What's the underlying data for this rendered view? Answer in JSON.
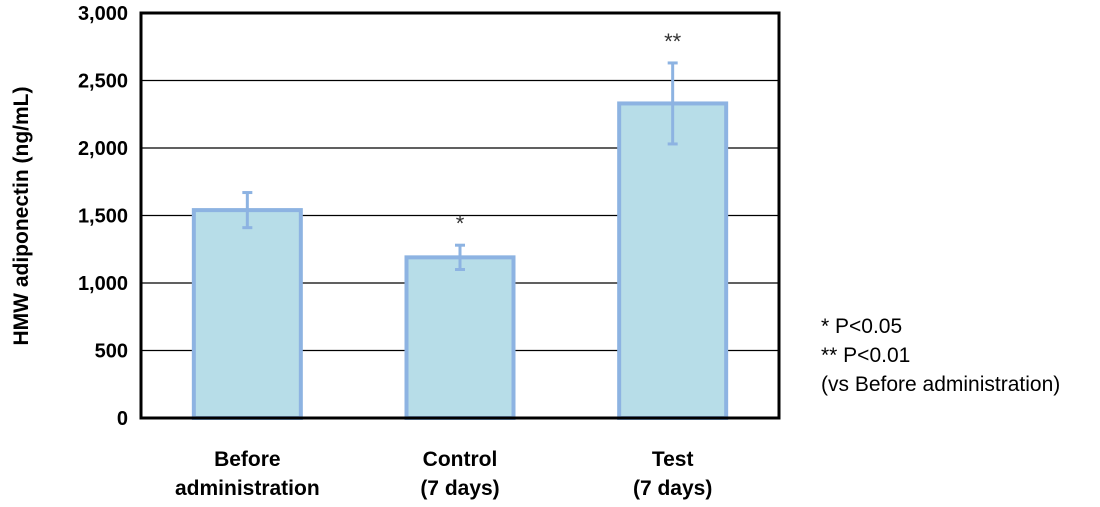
{
  "chart_data": {
    "type": "bar",
    "ylabel": "HMW adiponectin (ng/mL)",
    "ylim": [
      0,
      3000
    ],
    "yticks": [
      0,
      500,
      1000,
      1500,
      2000,
      2500,
      3000
    ],
    "ytick_labels": [
      "0",
      "500",
      "1,000",
      "1,500",
      "2,000",
      "2,500",
      "3,000"
    ],
    "grid": true,
    "categories": [
      [
        "Before",
        "administration"
      ],
      [
        "Control",
        "(7 days)"
      ],
      [
        "Test",
        "(7 days)"
      ]
    ],
    "values": [
      1540,
      1190,
      2330
    ],
    "errors": [
      130,
      90,
      300
    ],
    "significance": [
      "",
      "*",
      "**"
    ],
    "colors": {
      "bar_fill": "#b7dde8",
      "bar_stroke": "#8db3e2",
      "error_bar": "#8db3e2",
      "grid": "#000000"
    }
  },
  "notes": [
    "* P<0.05",
    "** P<0.01",
    "(vs Before administration)"
  ]
}
